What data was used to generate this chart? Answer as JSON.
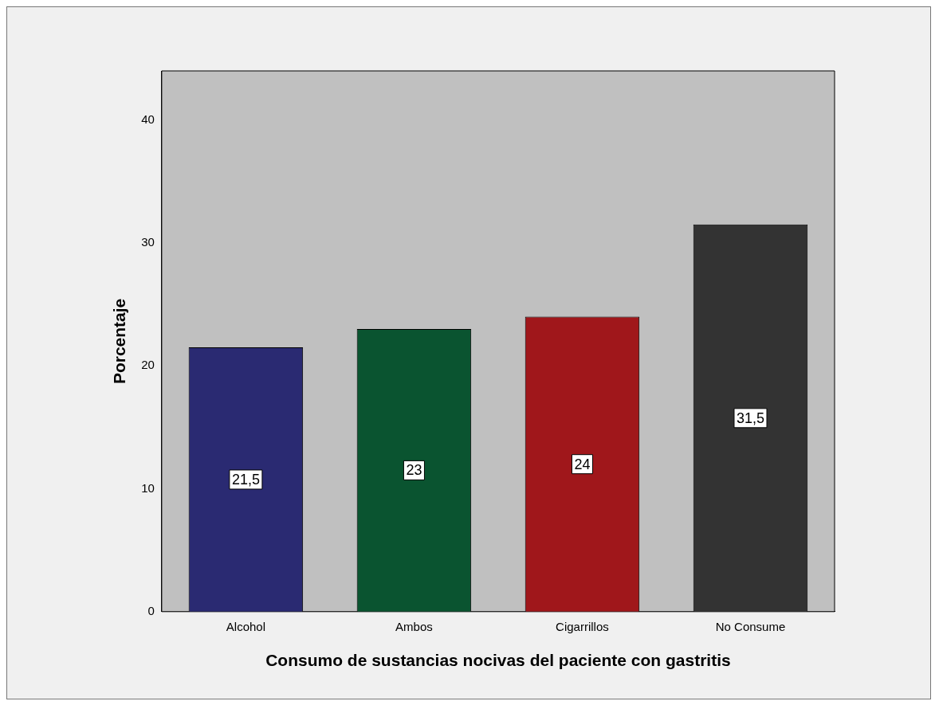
{
  "chart_data": {
    "type": "bar",
    "xlabel": "Consumo de sustancias nocivas del paciente con gastritis",
    "ylabel": "Porcentaje",
    "categories": [
      "Alcohol",
      "Ambos",
      "Cigarrillos",
      "No Consume"
    ],
    "values": [
      21.5,
      23,
      24,
      31.5
    ],
    "colors": [
      "#2a2a72",
      "#0a5430",
      "#a0171b",
      "#333333"
    ],
    "value_labels": [
      "21,5",
      "23",
      "24",
      "31,5"
    ],
    "ylim": [
      0,
      44
    ],
    "yticks": [
      0,
      10,
      20,
      30,
      40
    ],
    "grid": false,
    "legend": false
  }
}
